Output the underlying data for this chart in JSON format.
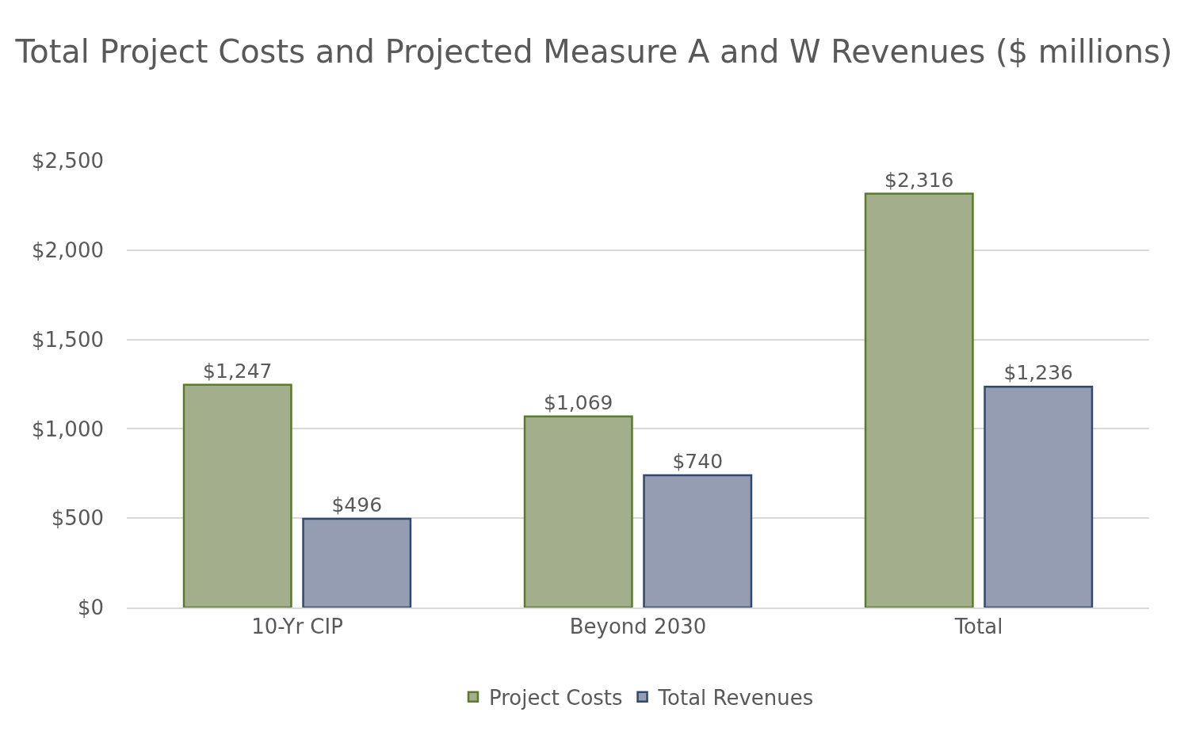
{
  "chart_data": {
    "type": "bar",
    "title": "Total Project Costs and Projected Measure A and W Revenues ($ millions)",
    "categories": [
      "10-Yr CIP",
      "Beyond 2030",
      "Total"
    ],
    "series": [
      {
        "name": "Project Costs",
        "color": "#a3af8c",
        "values": [
          1247,
          1069,
          2316
        ],
        "value_labels": [
          "$1,247",
          "$1,069",
          "$2,316"
        ]
      },
      {
        "name": "Total Revenues",
        "color": "#959db3",
        "values": [
          496,
          740,
          1236
        ],
        "value_labels": [
          "$496",
          "$740",
          "$1,236"
        ]
      }
    ],
    "ylim": [
      0,
      2500
    ],
    "yticks": [
      {
        "value": 0,
        "label": "$0"
      },
      {
        "value": 500,
        "label": "$500"
      },
      {
        "value": 1000,
        "label": "$1,000"
      },
      {
        "value": 1500,
        "label": "$1,500"
      },
      {
        "value": 2000,
        "label": "$2,000"
      },
      {
        "value": 2500,
        "label": "$2,500"
      }
    ],
    "grid": "y",
    "legend": "bottom"
  }
}
